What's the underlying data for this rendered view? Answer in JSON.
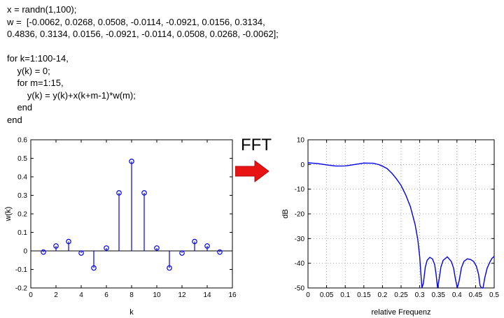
{
  "code": {
    "lines": [
      "x = randn(1,100);",
      "w =  [-0.0062, 0.0268, 0.0508, -0.0114, -0.0921, 0.0156, 0.3134,",
      "0.4836, 0.3134, 0.0156, -0.0921, -0.0114, 0.0508, 0.0268, -0.0062];",
      "",
      "for k=1:100-14,",
      "    y(k) = 0;",
      "    for m=1:15,",
      "        y(k) = y(k)+x(k+m-1)*w(m);",
      "    end",
      "end"
    ]
  },
  "fft_label": "FFT",
  "colors": {
    "series_blue": "#0000ee",
    "arrow_red": "#e81313",
    "axis_black": "#000000",
    "grid_gray": "#9a9a9a"
  },
  "chart_data": [
    {
      "type": "scatter",
      "variant": "stem",
      "title": "",
      "xlabel": "k",
      "ylabel": "w(k)",
      "xlim": [
        0,
        16
      ],
      "ylim": [
        -0.2,
        0.6
      ],
      "xticks": [
        0,
        2,
        4,
        6,
        8,
        10,
        12,
        14,
        16
      ],
      "xtick_labels": [
        "0",
        "2",
        "4",
        "6",
        "8",
        "10",
        "12",
        "14",
        "16"
      ],
      "yticks": [
        -0.2,
        -0.1,
        0,
        0.1,
        0.2,
        0.3,
        0.4,
        0.5,
        0.6
      ],
      "ytick_labels": [
        "-0.2",
        "-0.1",
        "0",
        "0.1",
        "0.2",
        "0.3",
        "0.4",
        "0.5",
        "0.6"
      ],
      "grid": false,
      "baseline": 0,
      "x": [
        1,
        2,
        3,
        4,
        5,
        6,
        7,
        8,
        9,
        10,
        11,
        12,
        13,
        14,
        15
      ],
      "y": [
        -0.0062,
        0.0268,
        0.0508,
        -0.0114,
        -0.0921,
        0.0156,
        0.3134,
        0.4836,
        0.3134,
        0.0156,
        -0.0921,
        -0.0114,
        0.0508,
        0.0268,
        -0.0062
      ]
    },
    {
      "type": "line",
      "title": "",
      "xlabel": "relative Frequenz",
      "ylabel": "dB",
      "xlim": [
        0,
        0.5
      ],
      "ylim": [
        -50,
        10
      ],
      "xticks": [
        0,
        0.05,
        0.1,
        0.15,
        0.2,
        0.25,
        0.3,
        0.35,
        0.4,
        0.45,
        0.5
      ],
      "xtick_labels": [
        "0",
        "0.05",
        "0.1",
        "0.15",
        "0.2",
        "0.25",
        "0.3",
        "0.35",
        "0.4",
        "0.45",
        "0.5"
      ],
      "yticks": [
        -50,
        -40,
        -30,
        -20,
        -10,
        0,
        10
      ],
      "ytick_labels": [
        "-50",
        "-40",
        "-30",
        "-20",
        "-10",
        "0",
        "10"
      ],
      "grid": true,
      "points": [
        [
          0,
          0.65
        ],
        [
          0.025,
          0.4
        ],
        [
          0.05,
          -0.17
        ],
        [
          0.075,
          -0.65
        ],
        [
          0.1,
          -0.59
        ],
        [
          0.125,
          -0.01
        ],
        [
          0.15,
          0.57
        ],
        [
          0.175,
          0.5
        ],
        [
          0.19,
          -0.05
        ],
        [
          0.2,
          -0.7
        ],
        [
          0.2125,
          -1.7
        ],
        [
          0.225,
          -3.5
        ],
        [
          0.2375,
          -5.8
        ],
        [
          0.25,
          -8.5
        ],
        [
          0.2625,
          -12.4
        ],
        [
          0.275,
          -17.1
        ],
        [
          0.2875,
          -24.2
        ],
        [
          0.295,
          -30.5
        ],
        [
          0.3,
          -37.4
        ],
        [
          0.303,
          -44
        ],
        [
          0.306,
          -62
        ],
        [
          0.31,
          -48
        ],
        [
          0.315,
          -41.5
        ],
        [
          0.32,
          -38.8
        ],
        [
          0.327,
          -37.6
        ],
        [
          0.334,
          -38.2
        ],
        [
          0.34,
          -40.5
        ],
        [
          0.344,
          -44.5
        ],
        [
          0.348,
          -62
        ],
        [
          0.352,
          -46.5
        ],
        [
          0.357,
          -41.5
        ],
        [
          0.363,
          -38.8
        ],
        [
          0.374,
          -37.4
        ],
        [
          0.385,
          -39.3
        ],
        [
          0.391,
          -42
        ],
        [
          0.396,
          -46.5
        ],
        [
          0.401,
          -62
        ],
        [
          0.406,
          -47
        ],
        [
          0.412,
          -41.8
        ],
        [
          0.419,
          -39.2
        ],
        [
          0.428,
          -38.2
        ],
        [
          0.437,
          -38.5
        ],
        [
          0.445,
          -39.3
        ],
        [
          0.452,
          -41.2
        ],
        [
          0.458,
          -44.5
        ],
        [
          0.462,
          -49
        ],
        [
          0.466,
          -62
        ],
        [
          0.47,
          -52
        ],
        [
          0.475,
          -45.7
        ],
        [
          0.481,
          -42
        ],
        [
          0.488,
          -39.6
        ],
        [
          0.494,
          -38
        ],
        [
          0.5,
          -37.2
        ]
      ]
    }
  ]
}
